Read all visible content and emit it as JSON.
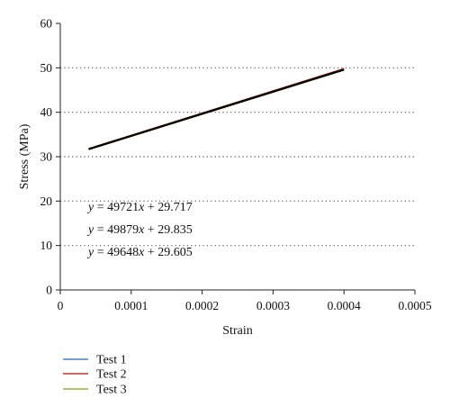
{
  "chart_data": {
    "type": "line",
    "title": "",
    "xlabel": "Strain",
    "ylabel": "Stress (MPa)",
    "xlim": [
      0,
      0.0005
    ],
    "ylim": [
      0,
      60
    ],
    "x_ticks": [
      "0",
      "0.0001",
      "0.0002",
      "0.0003",
      "0.0004",
      "0.0005"
    ],
    "y_ticks": [
      "0",
      "10",
      "20",
      "30",
      "40",
      "50",
      "60"
    ],
    "grid": "horizontal dotted",
    "legend_position": "bottom-left",
    "series": [
      {
        "name": "Test 1",
        "color": "#4a7fc1",
        "x": [
          4e-05,
          0.0004
        ],
        "y": [
          31.7,
          49.6
        ]
      },
      {
        "name": "Test 2",
        "color": "#c0392b",
        "x": [
          4e-05,
          0.0004
        ],
        "y": [
          31.8,
          49.8
        ]
      },
      {
        "name": "Test 3",
        "color": "#8db33a",
        "x": [
          4e-05,
          0.0004
        ],
        "y": [
          31.6,
          49.5
        ]
      },
      {
        "name": "",
        "color": "#000000",
        "x": [
          4e-05,
          0.0004
        ],
        "y": [
          31.7,
          49.6
        ]
      }
    ],
    "annotations": [
      {
        "y_label": "y",
        "rest": "= 49721",
        "x_label": "x",
        "tail": "+ 29.717"
      },
      {
        "y_label": "y",
        "rest": "= 49879",
        "x_label": "x",
        "tail": "+ 29.835"
      },
      {
        "y_label": "y",
        "rest": "= 49648",
        "x_label": "x",
        "tail": "+ 29.605"
      }
    ]
  }
}
